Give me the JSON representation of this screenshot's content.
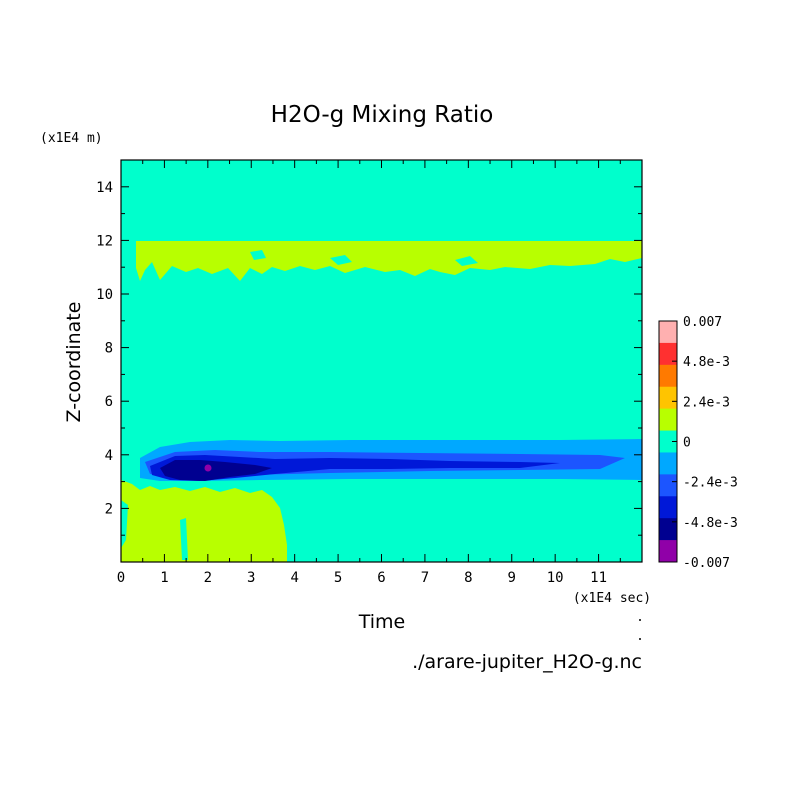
{
  "chart_data": {
    "type": "heatmap",
    "title": "H2O-g Mixing Ratio",
    "xlabel": "Time",
    "ylabel": "Z-coordinate",
    "x_unit": "(x1E4 sec)",
    "y_unit": "(x1E4 m)",
    "footer": "./arare-jupiter_H2O-g.nc",
    "xlim": [
      0,
      12
    ],
    "ylim": [
      0,
      15
    ],
    "x_ticks": [
      "0",
      "1",
      "2",
      "3",
      "4",
      "5",
      "6",
      "7",
      "8",
      "9",
      "10",
      "11"
    ],
    "y_ticks": [
      "2",
      "4",
      "6",
      "8",
      "10",
      "12",
      "14"
    ],
    "colorbar": {
      "range": [
        -0.007,
        0.007
      ],
      "labels": [
        "0.007",
        "4.8e-3",
        "2.4e-3",
        "0",
        "-2.4e-3",
        "-4.8e-3",
        "-0.007"
      ],
      "colors": [
        "#ffb0b0",
        "#ff3030",
        "#ff7a00",
        "#ffc400",
        "#b8ff00",
        "#00ffcc",
        "#00a8ff",
        "#1c55ff",
        "#0018d8",
        "#000090",
        "#9000a8"
      ]
    },
    "regions": [
      {
        "level": "0 to 2.4e-3",
        "x": [
          0.35,
          12.0
        ],
        "y": [
          10.8,
          11.9
        ],
        "desc": "upper slightly positive layer"
      },
      {
        "level": "0 to 2.4e-3",
        "x": [
          0.0,
          3.8
        ],
        "y": [
          0.0,
          3.1
        ],
        "desc": "lower-left slightly positive region"
      },
      {
        "level": "-2.4e-3 to 0",
        "x": [
          0.2,
          12.0
        ],
        "y": [
          3.0,
          4.6
        ],
        "desc": "negative band"
      },
      {
        "level": "-4.8e-3 to -2.4e-3",
        "x": [
          0.4,
          10.5
        ],
        "y": [
          3.2,
          4.1
        ],
        "desc": "core of negative band"
      },
      {
        "level": "-0.007 to -4.8e-3",
        "x": [
          0.9,
          3.4
        ],
        "y": [
          3.3,
          3.8
        ],
        "desc": "strongest negative core"
      }
    ]
  }
}
